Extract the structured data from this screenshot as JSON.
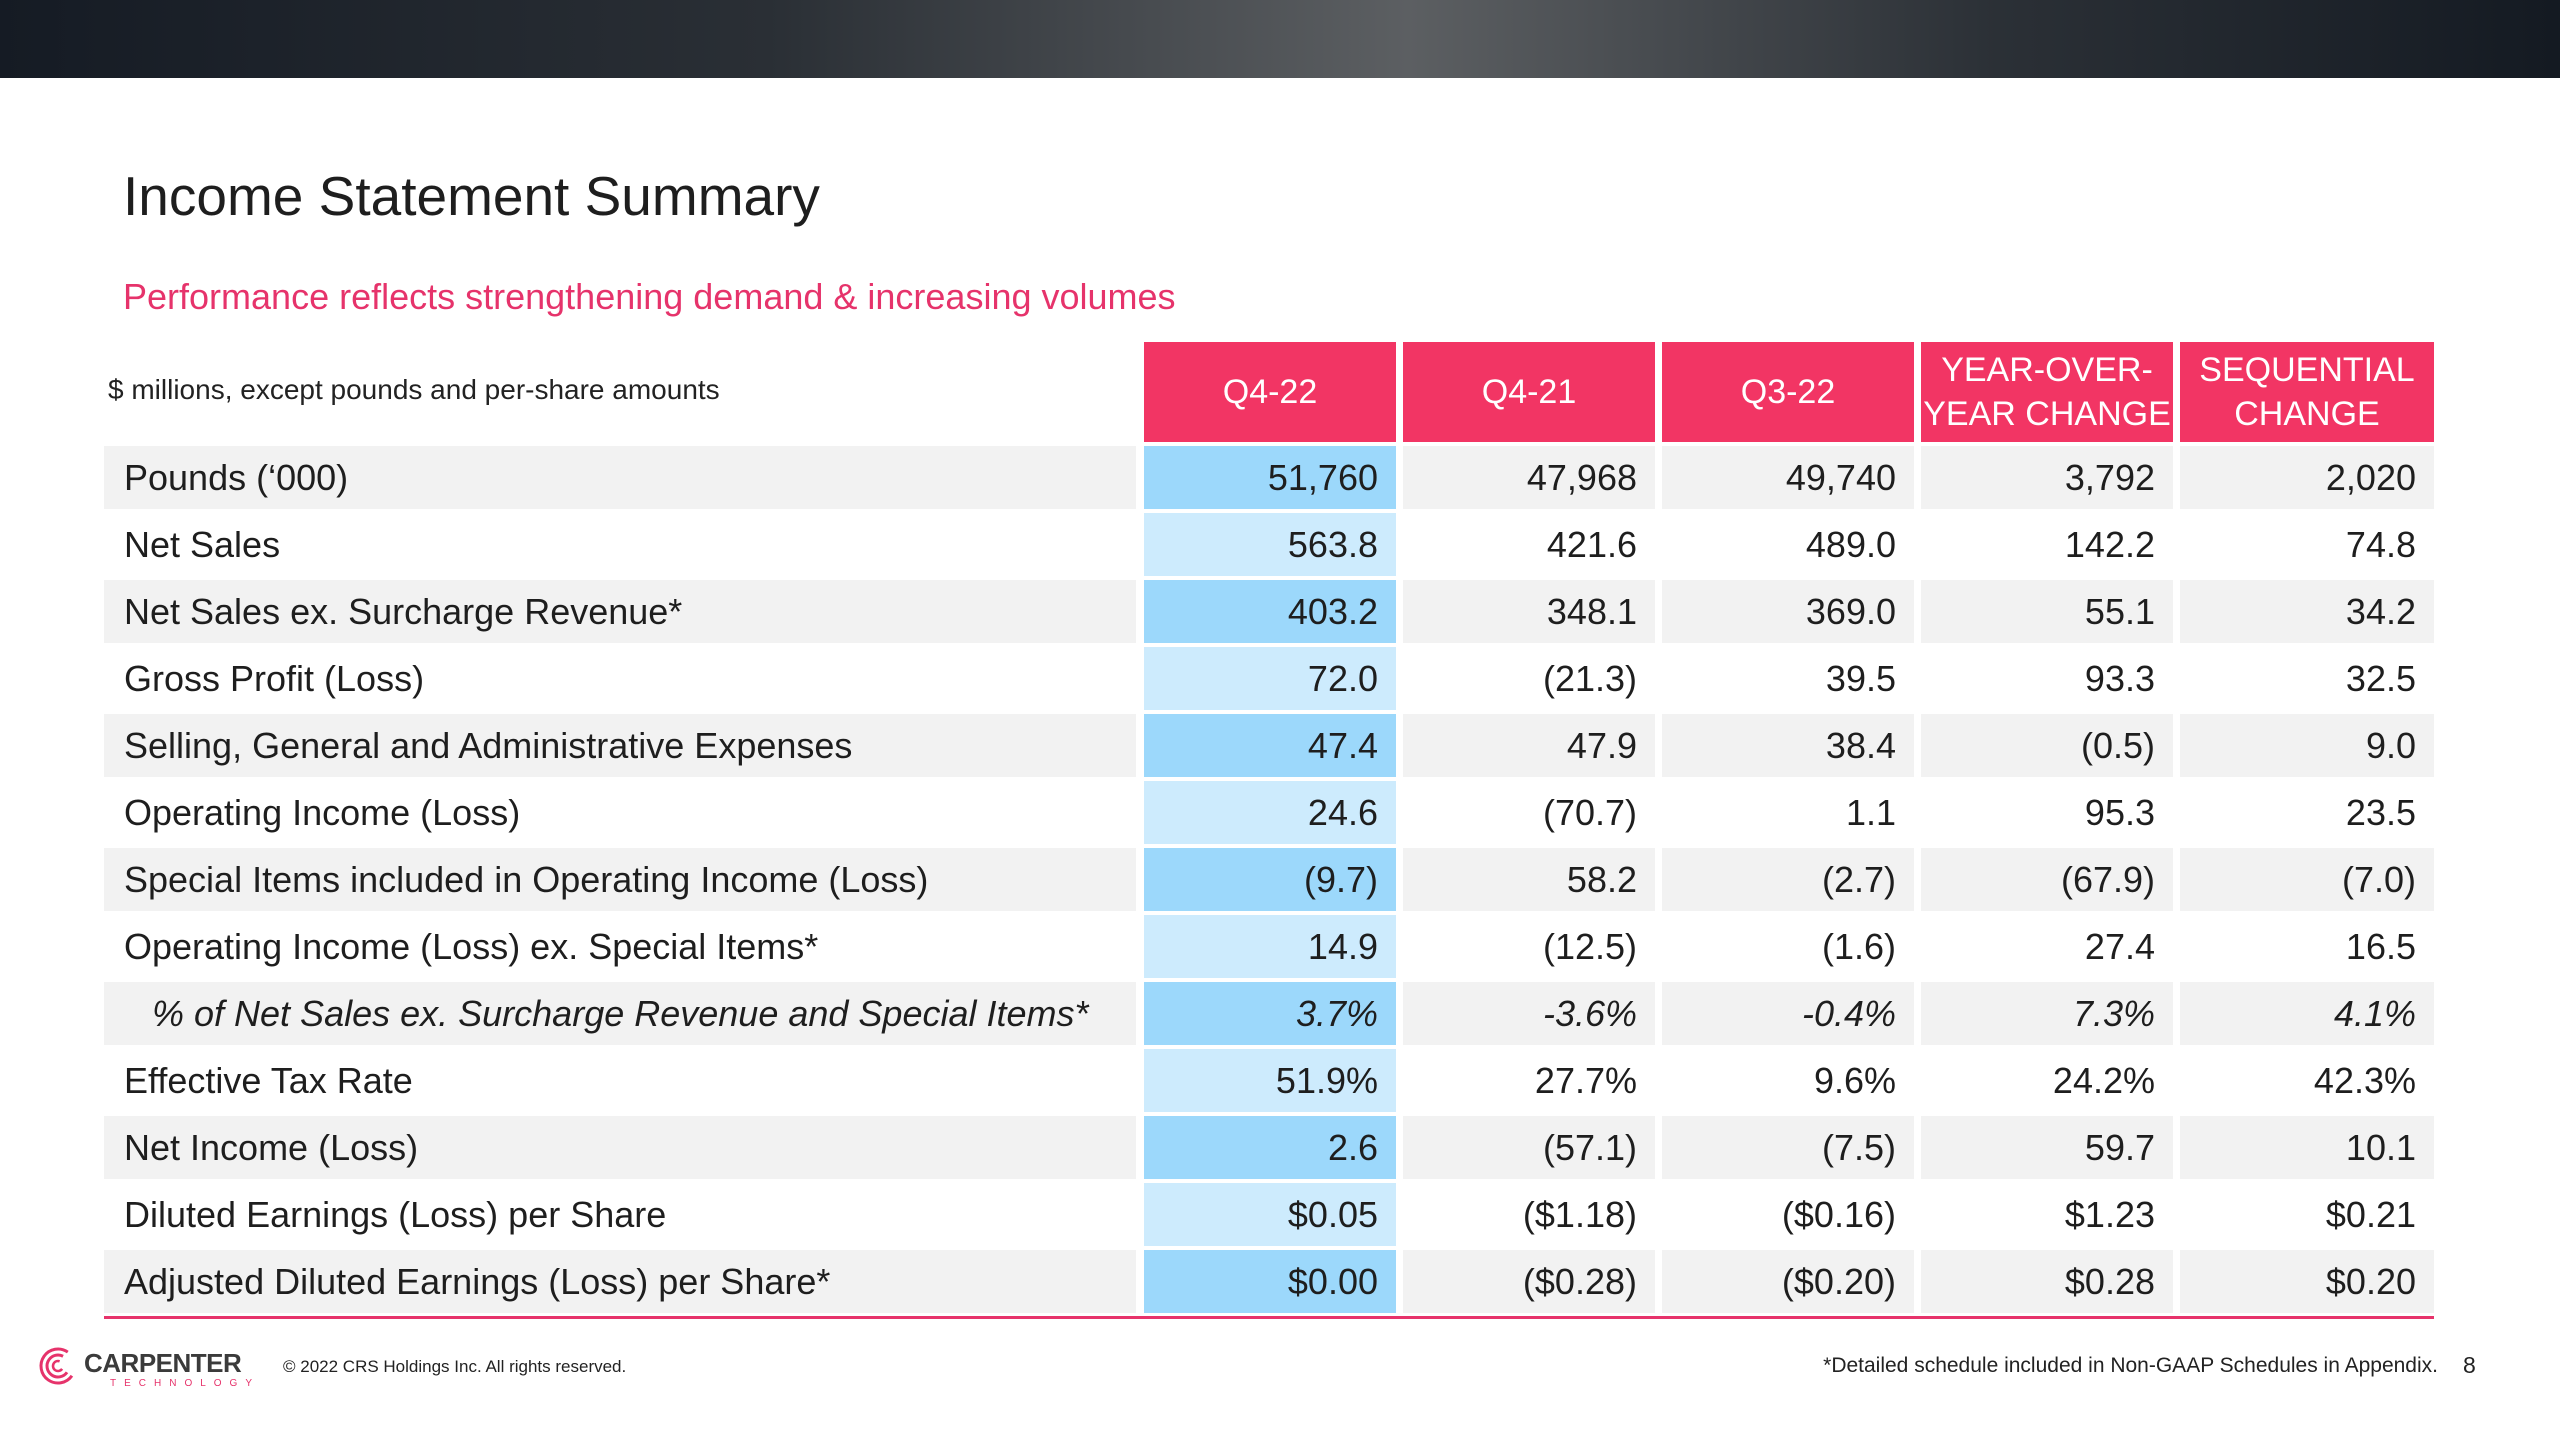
{
  "slide": {
    "title": "Income Statement Summary",
    "subtitle": "Performance reflects strengthening demand & increasing volumes",
    "units_label": "$ millions, except pounds and per-share amounts",
    "page_number": "8"
  },
  "table": {
    "headers": [
      "Q4-22",
      "Q4-21",
      "Q3-22",
      "YEAR-OVER-\nYEAR CHANGE",
      "SEQUENTIAL\nCHANGE"
    ],
    "rows": [
      {
        "label": "Pounds (‘000)",
        "values": [
          "51,760",
          "47,968",
          "49,740",
          "3,792",
          "2,020"
        ]
      },
      {
        "label": "Net Sales",
        "values": [
          "563.8",
          "421.6",
          "489.0",
          "142.2",
          "74.8"
        ]
      },
      {
        "label": "Net Sales ex. Surcharge Revenue*",
        "values": [
          "403.2",
          "348.1",
          "369.0",
          "55.1",
          "34.2"
        ]
      },
      {
        "label": "Gross Profit (Loss)",
        "values": [
          "72.0",
          "(21.3)",
          "39.5",
          "93.3",
          "32.5"
        ]
      },
      {
        "label": "Selling, General and Administrative Expenses",
        "values": [
          "47.4",
          "47.9",
          "38.4",
          "(0.5)",
          "9.0"
        ]
      },
      {
        "label": "Operating Income (Loss)",
        "values": [
          "24.6",
          "(70.7)",
          "1.1",
          "95.3",
          "23.5"
        ]
      },
      {
        "label": "Special Items included in Operating Income (Loss)",
        "values": [
          "(9.7)",
          "58.2",
          "(2.7)",
          "(67.9)",
          "(7.0)"
        ]
      },
      {
        "label": "Operating Income (Loss) ex. Special Items*",
        "values": [
          "14.9",
          "(12.5)",
          "(1.6)",
          "27.4",
          "16.5"
        ]
      },
      {
        "label": "% of Net Sales ex. Surcharge Revenue and Special Items*",
        "values": [
          "3.7%",
          "-3.6%",
          "-0.4%",
          "7.3%",
          "4.1%"
        ]
      },
      {
        "label": "Effective Tax Rate",
        "values": [
          "51.9%",
          "27.7%",
          "9.6%",
          "24.2%",
          "42.3%"
        ]
      },
      {
        "label": "Net Income (Loss)",
        "values": [
          "2.6",
          "(57.1)",
          "(7.5)",
          "59.7",
          "10.1"
        ]
      },
      {
        "label": "Diluted Earnings (Loss) per Share",
        "values": [
          "$0.05",
          "($1.18)",
          "($0.16)",
          "$1.23",
          "$0.21"
        ]
      },
      {
        "label": "Adjusted Diluted Earnings (Loss) per Share*",
        "values": [
          "$0.00",
          "($0.28)",
          "($0.20)",
          "$0.28",
          "$0.20"
        ]
      }
    ]
  },
  "footer": {
    "logo_text": "CARPENTER",
    "logo_subtext": "TECHNOLOGY",
    "logo_icon": "carpenter-logo-icon",
    "copyright": "© 2022 CRS Holdings Inc. All rights reserved.",
    "footnote": "*Detailed schedule included in Non-GAAP Schedules in Appendix."
  },
  "colors": {
    "accent": "#f23564",
    "highlight_dark": "#9cd8fb",
    "highlight_light": "#cdebfd",
    "row_shade": "#f2f2f2"
  }
}
